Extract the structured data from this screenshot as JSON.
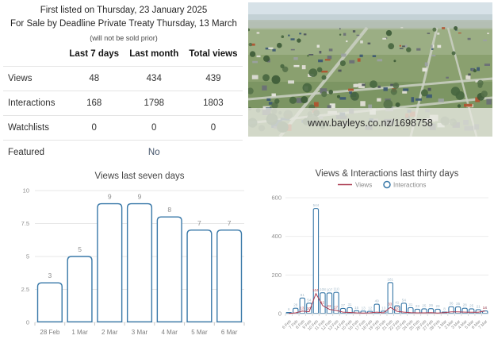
{
  "header": {
    "line1_prefix": "First listed on ",
    "line1_date": "Thursday, 23 January 2025",
    "line2_prefix": "For Sale by Deadline Private Treaty ",
    "line2_date": "Thursday, 13 March ",
    "line2_note": "(will not be sold prior)"
  },
  "stats_table": {
    "columns": [
      "Last 7 days",
      "Last month",
      "Total views"
    ],
    "rows": [
      {
        "label": "Views",
        "values": [
          "48",
          "434",
          "439"
        ]
      },
      {
        "label": "Interactions",
        "values": [
          "168",
          "1798",
          "1803"
        ]
      },
      {
        "label": "Watchlists",
        "values": [
          "0",
          "0",
          "0"
        ]
      },
      {
        "label": "Featured",
        "values": [
          "",
          "No",
          ""
        ]
      }
    ]
  },
  "photo": {
    "watermark": "www.bayleys.co.nz/1698758",
    "description": "aerial-suburb-photo"
  },
  "colors": {
    "accent_blue": "#3878a8",
    "views_red": "#ab3a50",
    "label_gray": "#8f8f8f",
    "bar_label_blue_gray": "#a4bac9",
    "featured_text": "#44546a"
  },
  "chart_data": [
    {
      "type": "bar",
      "title": "Views last seven days",
      "categories": [
        "28 Feb",
        "1 Mar",
        "2 Mar",
        "3 Mar",
        "4 Mar",
        "5 Mar",
        "6 Mar"
      ],
      "values": [
        3,
        5,
        9,
        9,
        8,
        7,
        7
      ],
      "xlabel": "",
      "ylabel": "",
      "ylim": [
        0,
        10
      ],
      "yticks": [
        0,
        2.5,
        5,
        7.5,
        10
      ],
      "grid": true,
      "bar_style": "white-fill-blue-outline-rounded"
    },
    {
      "type": "bar+line",
      "title": "Views & Interactions last thirty days",
      "legend_position": "top",
      "categories": [
        "6 Feb",
        "7 Feb",
        "8 Feb",
        "9 Feb",
        "10 Feb",
        "11 Feb",
        "12 Feb",
        "13 Feb",
        "14 Feb",
        "15 Feb",
        "16 Feb",
        "17 Feb",
        "18 Feb",
        "19 Feb",
        "20 Feb",
        "21 Feb",
        "22 Feb",
        "23 Feb",
        "24 Feb",
        "25 Feb",
        "26 Feb",
        "27 Feb",
        "28 Feb",
        "1 Mar",
        "2 Mar",
        "3 Mar",
        "4 Mar",
        "5 Mar",
        "6 Mar",
        "7 Mar"
      ],
      "series": [
        {
          "name": "Views",
          "type": "line",
          "color": "#ab3a50",
          "values": [
            1,
            4,
            13,
            10,
            104,
            42,
            22,
            17,
            8,
            6,
            4,
            3,
            4,
            8,
            4,
            33,
            12,
            8,
            5,
            4,
            4,
            5,
            3,
            5,
            9,
            9,
            8,
            7,
            7,
            14
          ]
        },
        {
          "name": "Interactions",
          "type": "bar",
          "color": "#3878a8",
          "values": [
            6,
            28,
            81,
            54,
            544,
            108,
            107,
            110,
            27,
            31,
            15,
            13,
            12,
            49,
            13,
            161,
            41,
            54,
            31,
            23,
            25,
            26,
            23,
            8,
            36,
            35,
            28,
            25,
            21,
            14
          ]
        }
      ],
      "xlabel": "",
      "ylabel": "",
      "ylim": [
        0,
        600
      ],
      "yticks": [
        0,
        200,
        400,
        600
      ],
      "grid": true
    }
  ]
}
